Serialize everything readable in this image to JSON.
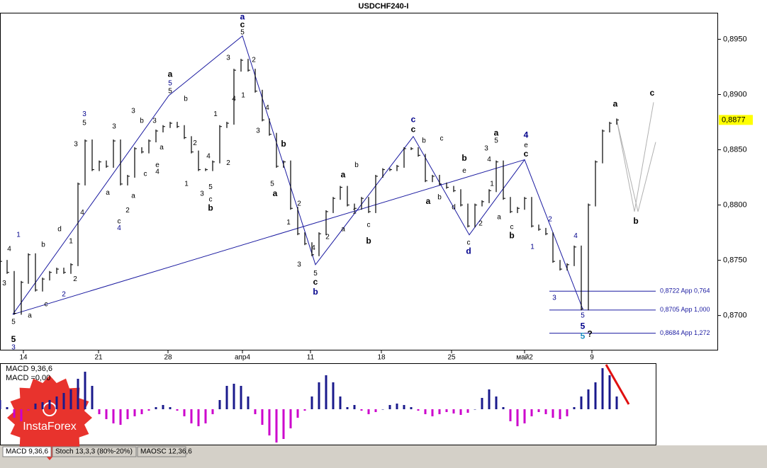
{
  "title": "USDCHF240-I",
  "chart_data": [
    {
      "type": "pricebar",
      "color": "#000000",
      "x": [
        0,
        1,
        2,
        3,
        4,
        5,
        6,
        7,
        8,
        9,
        10,
        11,
        12,
        13,
        14,
        15,
        16,
        17,
        18,
        19,
        20,
        21,
        22,
        23,
        24,
        25,
        26,
        27,
        28,
        29,
        30,
        31,
        32,
        33,
        34,
        35,
        36,
        37,
        38,
        39,
        40,
        41,
        42,
        43,
        44,
        45,
        46,
        47,
        48,
        49,
        50,
        51,
        52,
        53,
        54,
        55,
        56,
        57,
        58,
        59,
        60,
        61,
        62,
        63,
        64,
        65,
        66,
        67,
        68,
        69,
        70,
        71,
        72,
        73,
        74,
        75,
        76,
        77,
        78,
        79,
        80,
        81,
        82,
        83,
        84,
        85,
        86,
        87
      ],
      "values": [
        0.8749,
        0.8739,
        0.8702,
        0.873,
        0.8755,
        0.8723,
        0.8733,
        0.8739,
        0.8742,
        0.8739,
        0.8746,
        0.8819,
        0.8858,
        0.8832,
        0.8839,
        0.8835,
        0.8858,
        0.8819,
        0.8826,
        0.8851,
        0.8848,
        0.8858,
        0.8867,
        0.8871,
        0.8874,
        0.8871,
        0.8861,
        0.8848,
        0.8832,
        0.8832,
        0.8839,
        0.8871,
        0.8874,
        0.8922,
        0.8931,
        0.8922,
        0.8903,
        0.8877,
        0.8864,
        0.8835,
        0.8839,
        0.8797,
        0.8774,
        0.8765,
        0.8755,
        0.8774,
        0.8794,
        0.8806,
        0.8816,
        0.88,
        0.8797,
        0.8806,
        0.8794,
        0.8826,
        0.8832,
        0.8832,
        0.8835,
        0.8851,
        0.8851,
        0.8845,
        0.8822,
        0.8826,
        0.8819,
        0.8816,
        0.8813,
        0.88,
        0.8781,
        0.88,
        0.8803,
        0.8813,
        0.8839,
        0.8806,
        0.8794,
        0.8797,
        0.8806,
        0.8781,
        0.8778,
        0.8774,
        0.8749,
        0.8742,
        0.8746,
        0.8762,
        0.8706,
        0.88,
        0.8839,
        0.8867,
        0.8874,
        0.8877
      ],
      "xlim": [
        0,
        101
      ],
      "ylim": [
        0.8669,
        0.8974
      ],
      "xticks": [
        {
          "value": 3.3,
          "label": "14"
        },
        {
          "value": 13.9,
          "label": "21"
        },
        {
          "value": 23.7,
          "label": "28"
        },
        {
          "value": 34.2,
          "label": "апр4"
        },
        {
          "value": 43.8,
          "label": "11"
        },
        {
          "value": 53.8,
          "label": "18"
        },
        {
          "value": 63.7,
          "label": "25"
        },
        {
          "value": 74,
          "label": "май2"
        },
        {
          "value": 83.5,
          "label": "9"
        }
      ],
      "yticks": [
        {
          "value": 0.895,
          "label": "0,8950"
        },
        {
          "value": 0.89,
          "label": "0,8900"
        },
        {
          "value": 0.885,
          "label": "0,8850"
        },
        {
          "value": 0.88,
          "label": "0,8800"
        },
        {
          "value": 0.875,
          "label": "0,8750"
        },
        {
          "value": 0.87,
          "label": "0,8700"
        }
      ],
      "last_price": {
        "value": 0.8877,
        "label": "0,8877"
      },
      "levels": [
        {
          "value": 0.8722,
          "label": "0,8722 App 0,764",
          "x": [
            77.5,
            92.5
          ]
        },
        {
          "value": 0.8705,
          "label": "0,8705 App 1,000",
          "x": [
            77.5,
            92.5
          ]
        },
        {
          "value": 0.8684,
          "label": "0,8684 App 1,272",
          "x": [
            77.5,
            92.5
          ]
        }
      ],
      "wave_lines": [
        {
          "color": "#1a1aa0",
          "x": [
            1.8,
            23.8,
            34.2,
            44.5,
            58.3,
            66.2,
            74,
            82.2
          ],
          "y": [
            0.8701,
            0.8899,
            0.8953,
            0.8746,
            0.8862,
            0.8773,
            0.8841,
            0.8706
          ]
        },
        {
          "color": "#1a1aa0",
          "x": [
            1.8,
            74
          ],
          "y": [
            0.8701,
            0.8841
          ]
        },
        {
          "color": "#b0b0b0",
          "x": [
            87,
            89.5,
            92.2
          ],
          "y": [
            0.8877,
            0.8794,
            0.8893
          ]
        },
        {
          "color": "#b0b0b0",
          "x": [
            87,
            90,
            92.5
          ],
          "y": [
            0.8877,
            0.8794,
            0.8857
          ]
        }
      ],
      "annotations": [
        {
          "text": "a",
          "x": 34.2,
          "y": 0.897,
          "color": "#00008b",
          "bold": true
        },
        {
          "text": "c",
          "x": 34.2,
          "y": 0.8963,
          "bold": true
        },
        {
          "text": "5",
          "x": 34.2,
          "y": 0.8956
        },
        {
          "text": "3",
          "x": 32.2,
          "y": 0.8933
        },
        {
          "text": "2",
          "x": 35.8,
          "y": 0.8931
        },
        {
          "text": "1",
          "x": 34.3,
          "y": 0.8899
        },
        {
          "text": "4",
          "x": 33,
          "y": 0.8896
        },
        {
          "text": "4",
          "x": 37.7,
          "y": 0.8888
        },
        {
          "text": "3",
          "x": 36.4,
          "y": 0.8867
        },
        {
          "text": "b",
          "x": 40,
          "y": 0.8855,
          "bold": true
        },
        {
          "text": "5",
          "x": 38.4,
          "y": 0.8819
        },
        {
          "text": "a",
          "x": 38.8,
          "y": 0.881,
          "bold": true
        },
        {
          "text": "2",
          "x": 42.2,
          "y": 0.8801
        },
        {
          "text": "1",
          "x": 40.7,
          "y": 0.8784
        },
        {
          "text": "3",
          "x": 42.2,
          "y": 0.8746
        },
        {
          "text": "4",
          "x": 44.2,
          "y": 0.8761
        },
        {
          "text": "5",
          "x": 44.5,
          "y": 0.8738
        },
        {
          "text": "c",
          "x": 44.5,
          "y": 0.873,
          "bold": true
        },
        {
          "text": "b",
          "x": 44.5,
          "y": 0.8721,
          "color": "#00008b",
          "bold": true
        },
        {
          "text": "1",
          "x": 2.6,
          "y": 0.8773,
          "color": "#00008b"
        },
        {
          "text": "4",
          "x": 1.3,
          "y": 0.876
        },
        {
          "text": "3",
          "x": 0.6,
          "y": 0.8729
        },
        {
          "text": "5",
          "x": 1.9,
          "y": 0.8694
        },
        {
          "text": "5",
          "x": 1.9,
          "y": 0.8678,
          "bold": true
        },
        {
          "text": "3",
          "x": 1.9,
          "y": 0.8671,
          "color": "#00008b"
        },
        {
          "text": "a",
          "x": 4.2,
          "y": 0.87
        },
        {
          "text": "c",
          "x": 6.5,
          "y": 0.871
        },
        {
          "text": "2",
          "x": 9,
          "y": 0.8719,
          "color": "#00008b"
        },
        {
          "text": "b",
          "x": 6.1,
          "y": 0.8764
        },
        {
          "text": "d",
          "x": 8.4,
          "y": 0.8778
        },
        {
          "text": "1",
          "x": 10,
          "y": 0.8767
        },
        {
          "text": "2",
          "x": 10.6,
          "y": 0.8733
        },
        {
          "text": "4",
          "x": 11.6,
          "y": 0.8793
        },
        {
          "text": "3",
          "x": 10.7,
          "y": 0.8855
        },
        {
          "text": "5",
          "x": 11.9,
          "y": 0.8874
        },
        {
          "text": "3",
          "x": 11.9,
          "y": 0.8882,
          "color": "#00008b"
        },
        {
          "text": "a",
          "x": 24,
          "y": 0.8918,
          "bold": true
        },
        {
          "text": "5",
          "x": 24,
          "y": 0.891,
          "color": "#00008b"
        },
        {
          "text": "5",
          "x": 24,
          "y": 0.8903
        },
        {
          "text": "b",
          "x": 26.2,
          "y": 0.8896
        },
        {
          "text": "3",
          "x": 18.8,
          "y": 0.8885
        },
        {
          "text": "3",
          "x": 16.1,
          "y": 0.8871
        },
        {
          "text": "b",
          "x": 20,
          "y": 0.8876
        },
        {
          "text": "3",
          "x": 21.8,
          "y": 0.8876
        },
        {
          "text": "a",
          "x": 15.2,
          "y": 0.8811
        },
        {
          "text": "c",
          "x": 16.8,
          "y": 0.8785
        },
        {
          "text": "4",
          "x": 16.8,
          "y": 0.8779,
          "color": "#00008b"
        },
        {
          "text": "2",
          "x": 18,
          "y": 0.8795
        },
        {
          "text": "a",
          "x": 18.8,
          "y": 0.8808
        },
        {
          "text": "c",
          "x": 20.5,
          "y": 0.8828
        },
        {
          "text": "e",
          "x": 22.2,
          "y": 0.8836
        },
        {
          "text": "4",
          "x": 22.2,
          "y": 0.883
        },
        {
          "text": "a",
          "x": 22.8,
          "y": 0.8852
        },
        {
          "text": "1",
          "x": 26.3,
          "y": 0.8819
        },
        {
          "text": "2",
          "x": 27.5,
          "y": 0.8856
        },
        {
          "text": "3",
          "x": 28.5,
          "y": 0.881
        },
        {
          "text": "4",
          "x": 29.4,
          "y": 0.8844
        },
        {
          "text": "5",
          "x": 29.7,
          "y": 0.8816
        },
        {
          "text": "c",
          "x": 29.7,
          "y": 0.8805
        },
        {
          "text": "b",
          "x": 29.7,
          "y": 0.8797,
          "bold": true
        },
        {
          "text": "2",
          "x": 32.2,
          "y": 0.8838
        },
        {
          "text": "1",
          "x": 30.4,
          "y": 0.8882
        },
        {
          "text": "a",
          "x": 48.4,
          "y": 0.8827,
          "bold": true
        },
        {
          "text": "b",
          "x": 50.3,
          "y": 0.8836
        },
        {
          "text": "2",
          "x": 46.2,
          "y": 0.8771
        },
        {
          "text": "a",
          "x": 48.4,
          "y": 0.8778
        },
        {
          "text": "c",
          "x": 52,
          "y": 0.8782
        },
        {
          "text": "b",
          "x": 52,
          "y": 0.8767,
          "bold": true
        },
        {
          "text": "1",
          "x": 50,
          "y": 0.8794
        },
        {
          "text": "c",
          "x": 58.3,
          "y": 0.8877,
          "color": "#00008b",
          "bold": true
        },
        {
          "text": "c",
          "x": 58.3,
          "y": 0.8868,
          "bold": true
        },
        {
          "text": "b",
          "x": 59.8,
          "y": 0.8858
        },
        {
          "text": "a",
          "x": 60.4,
          "y": 0.8803,
          "bold": true
        },
        {
          "text": "b",
          "x": 62,
          "y": 0.8807
        },
        {
          "text": "d",
          "x": 64,
          "y": 0.8798
        },
        {
          "text": "c",
          "x": 62.3,
          "y": 0.886
        },
        {
          "text": "b",
          "x": 65.5,
          "y": 0.8842,
          "bold": true
        },
        {
          "text": "e",
          "x": 65.5,
          "y": 0.8831
        },
        {
          "text": "c",
          "x": 66.1,
          "y": 0.8766
        },
        {
          "text": "d",
          "x": 66.1,
          "y": 0.8758,
          "color": "#00008b",
          "bold": true
        },
        {
          "text": "2",
          "x": 67.8,
          "y": 0.8783
        },
        {
          "text": "a",
          "x": 70,
          "y": 0.8865,
          "bold": true
        },
        {
          "text": "5",
          "x": 70,
          "y": 0.8858
        },
        {
          "text": "3",
          "x": 68.6,
          "y": 0.8851
        },
        {
          "text": "4",
          "x": 69,
          "y": 0.8841
        },
        {
          "text": "1",
          "x": 69.4,
          "y": 0.8819
        },
        {
          "text": "a",
          "x": 70.4,
          "y": 0.8789
        },
        {
          "text": "c",
          "x": 72.2,
          "y": 0.878
        },
        {
          "text": "b",
          "x": 72.2,
          "y": 0.8772,
          "bold": true
        },
        {
          "text": "4",
          "x": 74.2,
          "y": 0.8863,
          "color": "#00008b",
          "bold": true
        },
        {
          "text": "e",
          "x": 74.2,
          "y": 0.8854
        },
        {
          "text": "c",
          "x": 74.2,
          "y": 0.8846,
          "bold": true
        },
        {
          "text": "1",
          "x": 75.1,
          "y": 0.8762,
          "color": "#00008b"
        },
        {
          "text": "2",
          "x": 77.6,
          "y": 0.8787,
          "color": "#00008b"
        },
        {
          "text": "4",
          "x": 81.2,
          "y": 0.8772,
          "color": "#00008b"
        },
        {
          "text": "3",
          "x": 78.2,
          "y": 0.8716,
          "color": "#00008b"
        },
        {
          "text": "5",
          "x": 82.2,
          "y": 0.87,
          "color": "#00008b"
        },
        {
          "text": "5",
          "x": 82.2,
          "y": 0.869,
          "color": "#00008b",
          "bold": true
        },
        {
          "text": "5",
          "x": 82.2,
          "y": 0.8681,
          "color": "#1e90c0",
          "bold": true
        },
        {
          "text": "?",
          "x": 83.2,
          "y": 0.8683,
          "bold": true
        },
        {
          "text": "a",
          "x": 86.8,
          "y": 0.8891,
          "bold": true
        },
        {
          "text": "c",
          "x": 92,
          "y": 0.8901,
          "bold": true
        },
        {
          "text": "b",
          "x": 89.7,
          "y": 0.8785,
          "bold": true
        }
      ]
    },
    {
      "type": "histogram",
      "title": "MACD 9,36,6",
      "subtitle": "MACD =0,00",
      "positive_color": "#1a1a8c",
      "negative_color": "#cc00cc",
      "ylim": [
        -0.005,
        0.0064
      ],
      "values": [
        0.0013,
        0.0003,
        -0.0012,
        -0.0017,
        -0.0002,
        0.0008,
        0.001,
        0.0013,
        0.0018,
        0.0023,
        0.0028,
        0.0043,
        0.0053,
        0.0033,
        -0.0007,
        -0.0014,
        -0.002,
        -0.0022,
        -0.0014,
        -0.001,
        -0.0007,
        -0.0002,
        0.0003,
        0.0006,
        0.0003,
        -0.0002,
        -0.001,
        -0.002,
        -0.0024,
        -0.002,
        -0.0007,
        0.0013,
        0.0033,
        0.0036,
        0.0033,
        0.0018,
        -0.0007,
        -0.0022,
        -0.0037,
        -0.0047,
        -0.0042,
        -0.0027,
        -0.0012,
        -0.0002,
        0.0018,
        0.0038,
        0.0048,
        0.0038,
        0.0018,
        0.0003,
        0.0006,
        -0.0002,
        -0.0007,
        -0.0004,
        0,
        0.0006,
        0.0008,
        0.0006,
        0.0003,
        -0.0002,
        -0.0007,
        -0.001,
        -0.0007,
        -0.0004,
        -0.0006,
        -0.0008,
        -0.0005,
        0,
        0.0016,
        0.0028,
        0.0018,
        0.0003,
        -0.0017,
        -0.0024,
        -0.002,
        -0.001,
        -0.0004,
        -0.0007,
        -0.0012,
        -0.0014,
        -0.001,
        0.0003,
        0.0018,
        0.0028,
        0.0038,
        0.0058,
        0.0048,
        0.0018
      ]
    }
  ],
  "tabs": [
    "MACD 9,36,6",
    "Stoch 13,3,3 (80%-20%)",
    "MAOSC 12,36,6"
  ],
  "logo": "InstaForex"
}
